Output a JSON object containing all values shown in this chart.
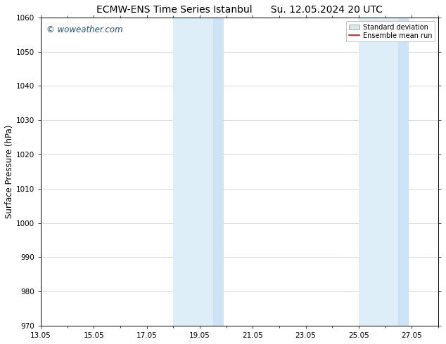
{
  "title_left": "ECMW-ENS Time Series Istanbul",
  "title_right": "Su. 12.05.2024 20 UTC",
  "ylabel": "Surface Pressure (hPa)",
  "ylim": [
    970,
    1060
  ],
  "yticks": [
    970,
    980,
    990,
    1000,
    1010,
    1020,
    1030,
    1040,
    1050,
    1060
  ],
  "xlim_start": 13.05,
  "xlim_end": 28.05,
  "xticks": [
    13.05,
    15.05,
    17.05,
    19.05,
    21.05,
    23.05,
    25.05,
    27.05
  ],
  "xtick_labels": [
    "13.05",
    "15.05",
    "17.05",
    "19.05",
    "21.05",
    "23.05",
    "25.05",
    "27.05"
  ],
  "shaded_regions": [
    {
      "xmin": 18.05,
      "xmax": 19.55,
      "color": "#ddeef8"
    },
    {
      "xmin": 19.55,
      "xmax": 19.95,
      "color": "#cce4f5"
    },
    {
      "xmin": 25.05,
      "xmax": 26.55,
      "color": "#ddeef8"
    },
    {
      "xmin": 26.55,
      "xmax": 26.95,
      "color": "#cce4f5"
    }
  ],
  "background_color": "#ffffff",
  "plot_bg_color": "#ffffff",
  "watermark_text": "© woweather.com",
  "watermark_color": "#1a5276",
  "legend_std_label": "Standard deviation",
  "legend_mean_label": "Ensemble mean run",
  "legend_std_facecolor": "#d8e8f0",
  "legend_std_edgecolor": "#aaaaaa",
  "legend_mean_color": "#dd0000",
  "title_fontsize": 10,
  "tick_fontsize": 7.5,
  "ylabel_fontsize": 8.5,
  "watermark_fontsize": 8.5
}
